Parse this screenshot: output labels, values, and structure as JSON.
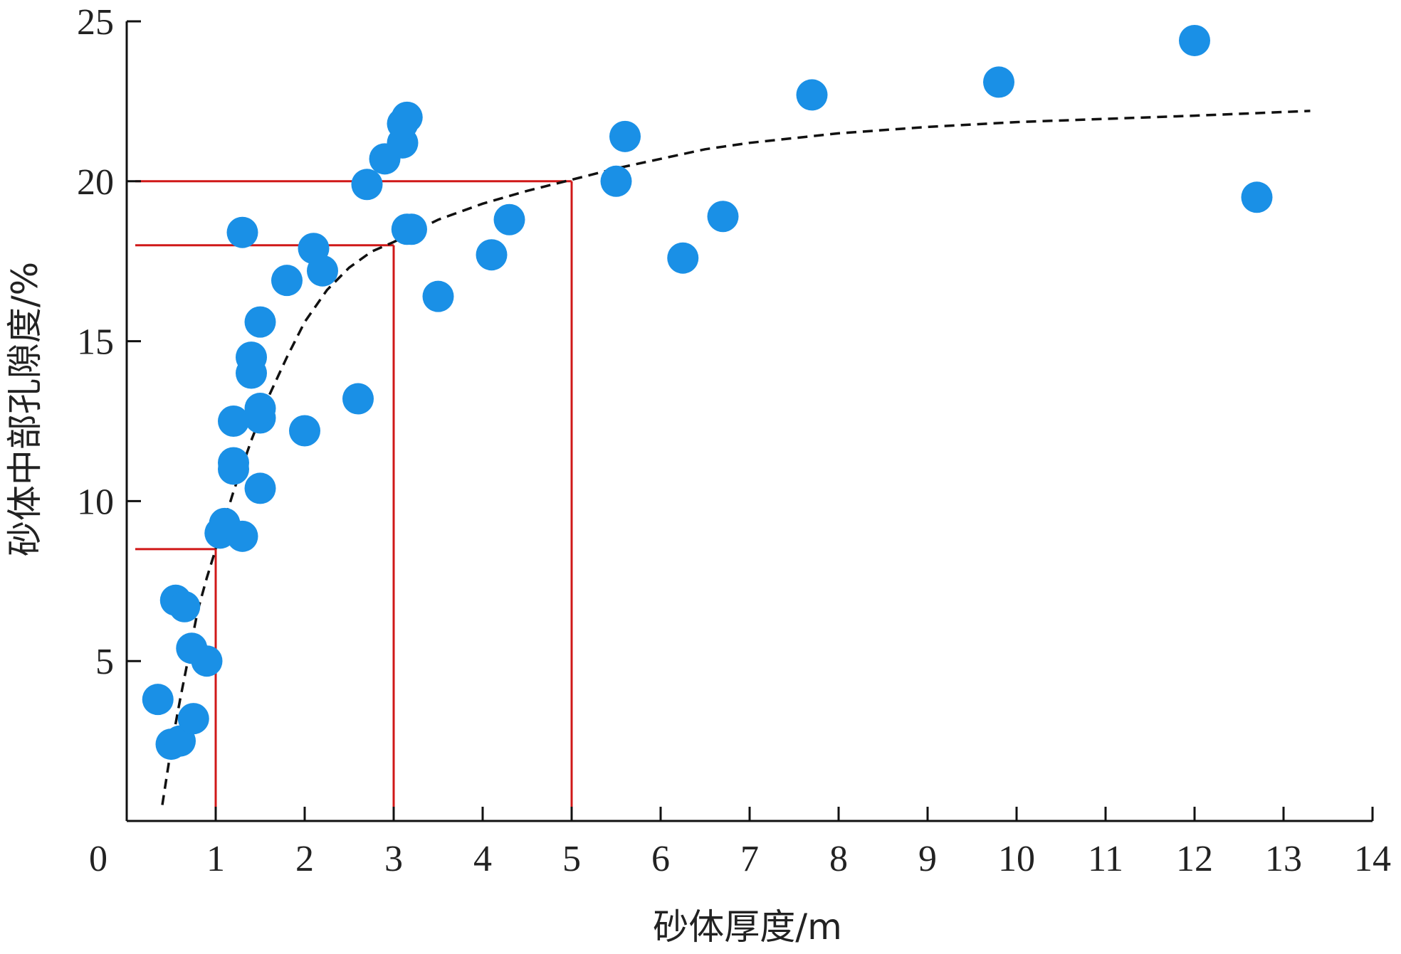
{
  "chart_data": {
    "type": "scatter",
    "title": "",
    "xlabel": "砂体厚度/m",
    "ylabel": "砂体中部孔隙度/%",
    "xlim": [
      0,
      14
    ],
    "ylim": [
      0,
      25
    ],
    "x_ticks": [
      "0",
      "1",
      "2",
      "3",
      "4",
      "5",
      "6",
      "7",
      "8",
      "9",
      "10",
      "11",
      "12",
      "13",
      "14"
    ],
    "y_ticks": [
      "5",
      "10",
      "15",
      "20",
      "25"
    ],
    "grid": false,
    "legend": "none",
    "colors": {
      "points": "#1a90e6",
      "reference_lines": "#d01818",
      "trend": "#111111",
      "axes": "#111111"
    },
    "series": [
      {
        "kind": "scatter",
        "points": [
          [
            0.35,
            3.8
          ],
          [
            0.5,
            2.4
          ],
          [
            0.6,
            2.5
          ],
          [
            0.75,
            3.2
          ],
          [
            0.55,
            6.9
          ],
          [
            0.65,
            6.7
          ],
          [
            0.73,
            5.4
          ],
          [
            0.9,
            5.0
          ],
          [
            1.05,
            9.0
          ],
          [
            1.1,
            9.3
          ],
          [
            1.3,
            8.9
          ],
          [
            1.2,
            11.0
          ],
          [
            1.2,
            11.2
          ],
          [
            1.2,
            12.5
          ],
          [
            1.5,
            10.4
          ],
          [
            1.5,
            12.6
          ],
          [
            1.5,
            12.9
          ],
          [
            1.4,
            14.0
          ],
          [
            1.4,
            14.5
          ],
          [
            1.5,
            15.6
          ],
          [
            1.3,
            18.4
          ],
          [
            1.8,
            16.9
          ],
          [
            2.0,
            12.2
          ],
          [
            2.1,
            17.9
          ],
          [
            2.2,
            17.2
          ],
          [
            2.6,
            13.2
          ],
          [
            2.7,
            19.9
          ],
          [
            2.9,
            20.7
          ],
          [
            3.1,
            21.2
          ],
          [
            3.1,
            21.8
          ],
          [
            3.15,
            22.0
          ],
          [
            3.15,
            18.5
          ],
          [
            3.2,
            18.5
          ],
          [
            3.5,
            16.4
          ],
          [
            4.1,
            17.7
          ],
          [
            4.3,
            18.8
          ],
          [
            5.5,
            20.0
          ],
          [
            5.6,
            21.4
          ],
          [
            6.25,
            17.6
          ],
          [
            6.7,
            18.9
          ],
          [
            7.7,
            22.7
          ],
          [
            9.8,
            23.1
          ],
          [
            12.0,
            24.4
          ],
          [
            12.7,
            19.5
          ]
        ]
      },
      {
        "kind": "trend",
        "style": "dashed",
        "points": [
          [
            0.4,
            0.5
          ],
          [
            0.5,
            2.3
          ],
          [
            0.6,
            3.8
          ],
          [
            0.7,
            5.2
          ],
          [
            0.8,
            6.6
          ],
          [
            0.9,
            7.6
          ],
          [
            1.0,
            8.5
          ],
          [
            1.2,
            10.3
          ],
          [
            1.4,
            11.9
          ],
          [
            1.6,
            13.3
          ],
          [
            1.8,
            14.5
          ],
          [
            2.0,
            15.6
          ],
          [
            2.25,
            16.6
          ],
          [
            2.5,
            17.3
          ],
          [
            2.75,
            17.8
          ],
          [
            3.0,
            18.1
          ],
          [
            3.5,
            18.8
          ],
          [
            4.0,
            19.3
          ],
          [
            4.5,
            19.7
          ],
          [
            5.0,
            20.05
          ],
          [
            5.5,
            20.4
          ],
          [
            6.0,
            20.7
          ],
          [
            6.5,
            21.0
          ],
          [
            7.0,
            21.2
          ],
          [
            8.0,
            21.5
          ],
          [
            9.0,
            21.7
          ],
          [
            10.0,
            21.85
          ],
          [
            11.0,
            21.95
          ],
          [
            12.0,
            22.05
          ],
          [
            13.3,
            22.2
          ]
        ]
      }
    ],
    "reference_lines": [
      {
        "x": 1,
        "y": 8.5
      },
      {
        "x": 3,
        "y": 18
      },
      {
        "x": 5,
        "y": 20
      }
    ]
  }
}
